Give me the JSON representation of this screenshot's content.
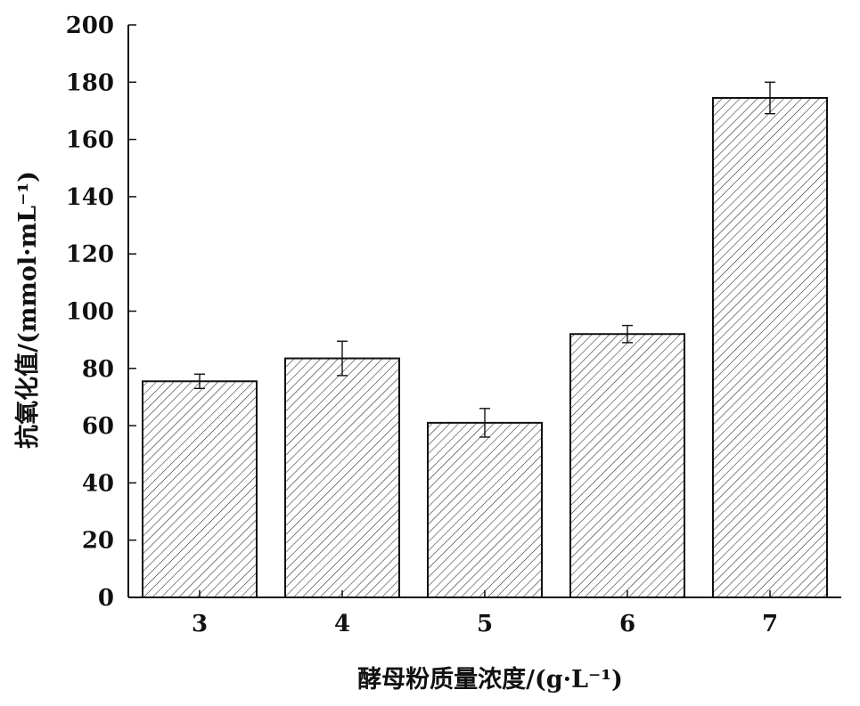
{
  "chart_data": {
    "type": "bar",
    "categories": [
      "3",
      "4",
      "5",
      "6",
      "7"
    ],
    "values": [
      75.5,
      83.5,
      61,
      92,
      174.5
    ],
    "errors": [
      2.5,
      6,
      5,
      3,
      5.5
    ],
    "title": "",
    "xlabel": "酵母粉质量浓度/(g·L⁻¹)",
    "ylabel": "抗氧化值/(mmol·mL⁻¹)",
    "ylim": [
      0,
      200
    ],
    "yticks": [
      "0",
      "20",
      "40",
      "60",
      "80",
      "100",
      "120",
      "140",
      "160",
      "180",
      "200"
    ],
    "grid": false,
    "legend": "none",
    "bar_fill": "hatched",
    "bar_color": "#ffffff",
    "line_color": "#111111"
  }
}
